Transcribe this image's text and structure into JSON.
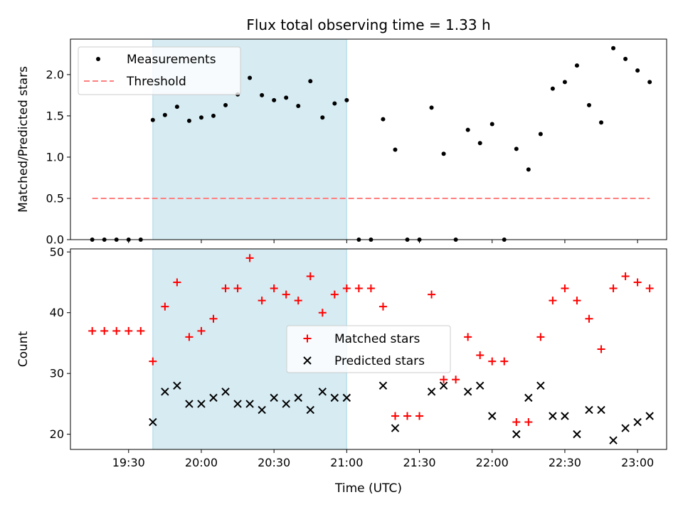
{
  "chart_data": [
    {
      "type": "scatter",
      "title": "Flux total observing time = 1.33 h",
      "ylabel": "Matched/Predicted stars",
      "ylim": [
        0,
        2.43
      ],
      "yticks": [
        "0.0",
        "0.5",
        "1.0",
        "1.5",
        "2.0"
      ],
      "highlight_span": [
        "19:40",
        "21:00"
      ],
      "legend": {
        "location": "top-left",
        "entries": [
          "Measurements",
          "Threshold"
        ]
      },
      "series": [
        {
          "name": "Measurements",
          "color": "#000000",
          "marker": "dot",
          "points": [
            [
              "19:15",
              0
            ],
            [
              "19:20",
              0
            ],
            [
              "19:25",
              0
            ],
            [
              "19:30",
              0
            ],
            [
              "19:35",
              0
            ],
            [
              "19:40",
              1.45
            ],
            [
              "19:45",
              1.51
            ],
            [
              "19:50",
              1.61
            ],
            [
              "19:55",
              1.44
            ],
            [
              "20:00",
              1.48
            ],
            [
              "20:05",
              1.5
            ],
            [
              "20:10",
              1.63
            ],
            [
              "20:15",
              1.76
            ],
            [
              "20:20",
              1.96
            ],
            [
              "20:25",
              1.75
            ],
            [
              "20:30",
              1.69
            ],
            [
              "20:35",
              1.72
            ],
            [
              "20:40",
              1.62
            ],
            [
              "20:45",
              1.92
            ],
            [
              "20:50",
              1.48
            ],
            [
              "20:55",
              1.65
            ],
            [
              "21:00",
              1.69
            ],
            [
              "21:05",
              0
            ],
            [
              "21:10",
              0
            ],
            [
              "21:15",
              1.46
            ],
            [
              "21:20",
              1.09
            ],
            [
              "21:25",
              0
            ],
            [
              "21:30",
              0
            ],
            [
              "21:35",
              1.6
            ],
            [
              "21:40",
              1.04
            ],
            [
              "21:45",
              0
            ],
            [
              "21:50",
              1.33
            ],
            [
              "21:55",
              1.17
            ],
            [
              "22:00",
              1.4
            ],
            [
              "22:05",
              0
            ],
            [
              "22:10",
              1.1
            ],
            [
              "22:15",
              0.85
            ],
            [
              "22:20",
              1.28
            ],
            [
              "22:25",
              1.83
            ],
            [
              "22:30",
              1.91
            ],
            [
              "22:35",
              2.11
            ],
            [
              "22:40",
              1.63
            ],
            [
              "22:45",
              1.42
            ],
            [
              "22:50",
              2.32
            ],
            [
              "22:55",
              2.19
            ],
            [
              "23:00",
              2.05
            ],
            [
              "23:05",
              1.91
            ]
          ]
        },
        {
          "name": "Threshold",
          "color": "#ff7f7f",
          "style": "dashed",
          "points": [
            [
              "19:15",
              0.5
            ],
            [
              "23:05",
              0.5
            ]
          ]
        }
      ]
    },
    {
      "type": "scatter",
      "xlabel": "Time (UTC)",
      "ylabel": "Count",
      "ylim": [
        17.5,
        50.5
      ],
      "yticks": [
        "20",
        "30",
        "40",
        "50"
      ],
      "xlim": [
        "19:06",
        "23:12"
      ],
      "xticks": [
        "19:30",
        "20:00",
        "20:30",
        "21:00",
        "21:30",
        "22:00",
        "22:30",
        "23:00"
      ],
      "highlight_span": [
        "19:40",
        "21:00"
      ],
      "legend": {
        "location": "center",
        "entries": [
          "Matched stars",
          "Predicted stars"
        ]
      },
      "series": [
        {
          "name": "Matched stars",
          "color": "#ff0000",
          "marker": "plus",
          "points": [
            [
              "19:15",
              37
            ],
            [
              "19:20",
              37
            ],
            [
              "19:25",
              37
            ],
            [
              "19:30",
              37
            ],
            [
              "19:35",
              37
            ],
            [
              "19:40",
              32
            ],
            [
              "19:45",
              41
            ],
            [
              "19:50",
              45
            ],
            [
              "19:55",
              36
            ],
            [
              "20:00",
              37
            ],
            [
              "20:05",
              39
            ],
            [
              "20:10",
              44
            ],
            [
              "20:15",
              44
            ],
            [
              "20:20",
              49
            ],
            [
              "20:25",
              42
            ],
            [
              "20:30",
              44
            ],
            [
              "20:35",
              43
            ],
            [
              "20:40",
              42
            ],
            [
              "20:45",
              46
            ],
            [
              "20:50",
              40
            ],
            [
              "20:55",
              43
            ],
            [
              "21:00",
              44
            ],
            [
              "21:05",
              44
            ],
            [
              "21:10",
              44
            ],
            [
              "21:15",
              41
            ],
            [
              "21:20",
              23
            ],
            [
              "21:25",
              23
            ],
            [
              "21:30",
              23
            ],
            [
              "21:35",
              43
            ],
            [
              "21:40",
              29
            ],
            [
              "21:45",
              29
            ],
            [
              "21:50",
              36
            ],
            [
              "21:55",
              33
            ],
            [
              "22:00",
              32
            ],
            [
              "22:05",
              32
            ],
            [
              "22:10",
              22
            ],
            [
              "22:15",
              22
            ],
            [
              "22:20",
              36
            ],
            [
              "22:25",
              42
            ],
            [
              "22:30",
              44
            ],
            [
              "22:35",
              42
            ],
            [
              "22:40",
              39
            ],
            [
              "22:45",
              34
            ],
            [
              "22:50",
              44
            ],
            [
              "22:55",
              46
            ],
            [
              "23:00",
              45
            ],
            [
              "23:05",
              44
            ]
          ]
        },
        {
          "name": "Predicted stars",
          "color": "#000000",
          "marker": "x",
          "points": [
            [
              "19:40",
              22
            ],
            [
              "19:45",
              27
            ],
            [
              "19:50",
              28
            ],
            [
              "19:55",
              25
            ],
            [
              "20:00",
              25
            ],
            [
              "20:05",
              26
            ],
            [
              "20:10",
              27
            ],
            [
              "20:15",
              25
            ],
            [
              "20:20",
              25
            ],
            [
              "20:25",
              24
            ],
            [
              "20:30",
              26
            ],
            [
              "20:35",
              25
            ],
            [
              "20:40",
              26
            ],
            [
              "20:45",
              24
            ],
            [
              "20:50",
              27
            ],
            [
              "20:55",
              26
            ],
            [
              "21:00",
              26
            ],
            [
              "21:15",
              28
            ],
            [
              "21:20",
              21
            ],
            [
              "21:35",
              27
            ],
            [
              "21:40",
              28
            ],
            [
              "21:50",
              27
            ],
            [
              "21:55",
              28
            ],
            [
              "22:00",
              23
            ],
            [
              "22:10",
              20
            ],
            [
              "22:15",
              26
            ],
            [
              "22:20",
              28
            ],
            [
              "22:25",
              23
            ],
            [
              "22:30",
              23
            ],
            [
              "22:35",
              20
            ],
            [
              "22:40",
              24
            ],
            [
              "22:45",
              24
            ],
            [
              "22:50",
              19
            ],
            [
              "22:55",
              21
            ],
            [
              "23:00",
              22
            ],
            [
              "23:05",
              23
            ]
          ]
        }
      ]
    }
  ]
}
